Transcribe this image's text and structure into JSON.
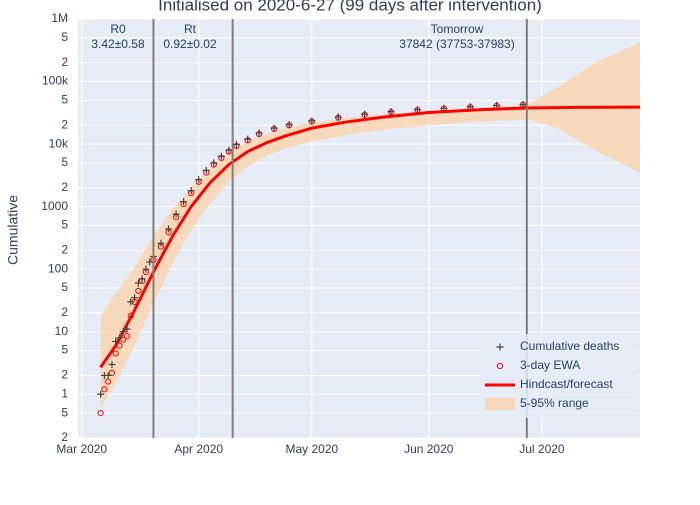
{
  "chart_data": {
    "type": "line",
    "title": "Initialised on 2020-6-27 (99 days after intervention)",
    "y_label": "Cumulative",
    "log_y": true,
    "grid": true,
    "legend": "bottom-right",
    "xlim": [
      "2020-02-29",
      "2020-07-27"
    ],
    "xticks": [
      {
        "value": "2020-03-01",
        "label": "Mar 2020"
      },
      {
        "value": "2020-04-01",
        "label": "Apr 2020"
      },
      {
        "value": "2020-05-01",
        "label": "May 2020"
      },
      {
        "value": "2020-06-01",
        "label": "Jun 2020"
      },
      {
        "value": "2020-07-01",
        "label": "Jul 2020"
      }
    ],
    "ylim": [
      0.2,
      1000000
    ],
    "yticks": [
      {
        "value": 0.2,
        "label": "2"
      },
      {
        "value": 0.5,
        "label": "5"
      },
      1,
      {
        "value": 2,
        "label": "2"
      },
      {
        "value": 5,
        "label": "5"
      },
      10,
      {
        "value": 20,
        "label": "2"
      },
      {
        "value": 50,
        "label": "5"
      },
      100,
      {
        "value": 200,
        "label": "2"
      },
      {
        "value": 500,
        "label": "5"
      },
      1000,
      {
        "value": 2000,
        "label": "2"
      },
      {
        "value": 5000,
        "label": "5"
      },
      {
        "value": 10000,
        "label": "10k"
      },
      {
        "value": 20000,
        "label": "2"
      },
      {
        "value": 50000,
        "label": "5"
      },
      {
        "value": 100000,
        "label": "100k"
      },
      {
        "value": 200000,
        "label": "2"
      },
      {
        "value": 500000,
        "label": "5"
      },
      {
        "value": 1000000,
        "label": "1M"
      }
    ],
    "vlines": [
      {
        "x": "2020-03-20",
        "label": "R0",
        "text": "3.42±0.58"
      },
      {
        "x": "2020-04-10",
        "label": "Rt",
        "text": "0.92±0.02"
      },
      {
        "x": "2020-06-27",
        "label": "Tomorrow",
        "text": "37842 (37753-37983)"
      }
    ],
    "series": [
      {
        "name": "Cumulative deaths",
        "kind": "plus",
        "color": "#444444",
        "x": [
          "2020-03-06",
          "2020-03-07",
          "2020-03-08",
          "2020-03-09",
          "2020-03-10",
          "2020-03-11",
          "2020-03-12",
          "2020-03-13",
          "2020-03-14",
          "2020-03-15",
          "2020-03-16",
          "2020-03-17",
          "2020-03-18",
          "2020-03-19",
          "2020-03-20",
          "2020-03-22",
          "2020-03-24",
          "2020-03-26",
          "2020-03-28",
          "2020-03-30",
          "2020-04-01",
          "2020-04-03",
          "2020-04-05",
          "2020-04-07",
          "2020-04-09",
          "2020-04-11",
          "2020-04-14",
          "2020-04-17",
          "2020-04-21",
          "2020-04-25",
          "2020-05-01",
          "2020-05-08",
          "2020-05-15",
          "2020-05-22",
          "2020-05-29",
          "2020-06-05",
          "2020-06-12",
          "2020-06-19",
          "2020-06-26"
        ],
        "values": [
          1,
          2,
          2,
          3,
          7,
          8,
          10,
          11,
          30,
          35,
          60,
          70,
          100,
          130,
          160,
          260,
          440,
          760,
          1200,
          1800,
          2700,
          3800,
          5000,
          6400,
          8000,
          9900,
          12000,
          15000,
          18000,
          20500,
          23500,
          27000,
          30000,
          33000,
          35500,
          37500,
          39500,
          41500,
          43000
        ]
      },
      {
        "name": "3-day EWA",
        "kind": "circle",
        "color": "#ff0000",
        "x": [
          "2020-03-06",
          "2020-03-07",
          "2020-03-08",
          "2020-03-09",
          "2020-03-10",
          "2020-03-11",
          "2020-03-12",
          "2020-03-13",
          "2020-03-14",
          "2020-03-15",
          "2020-03-16",
          "2020-03-17",
          "2020-03-18",
          "2020-03-20",
          "2020-03-22",
          "2020-03-24",
          "2020-03-26",
          "2020-03-28",
          "2020-03-30",
          "2020-04-01",
          "2020-04-03",
          "2020-04-05",
          "2020-04-07",
          "2020-04-09",
          "2020-04-11",
          "2020-04-14",
          "2020-04-17",
          "2020-04-21",
          "2020-04-25",
          "2020-05-01",
          "2020-05-08",
          "2020-05-15",
          "2020-05-22",
          "2020-05-29",
          "2020-06-05",
          "2020-06-12",
          "2020-06-19",
          "2020-06-26"
        ],
        "values": [
          0.5,
          1.2,
          1.6,
          2.2,
          4.5,
          6,
          7.5,
          8.5,
          18,
          30,
          45,
          65,
          90,
          140,
          230,
          390,
          680,
          1100,
          1650,
          2500,
          3500,
          4700,
          6000,
          7600,
          9300,
          11500,
          14500,
          17500,
          20000,
          23000,
          26500,
          29500,
          32500,
          35000,
          37000,
          39000,
          41000,
          42500
        ]
      },
      {
        "name": "Hindcast/forecast",
        "kind": "line",
        "color": "#ff0000",
        "x": [
          "2020-03-06",
          "2020-03-10",
          "2020-03-15",
          "2020-03-20",
          "2020-03-25",
          "2020-03-30",
          "2020-04-04",
          "2020-04-09",
          "2020-04-14",
          "2020-04-19",
          "2020-04-24",
          "2020-05-01",
          "2020-05-10",
          "2020-05-20",
          "2020-06-01",
          "2020-06-15",
          "2020-06-27",
          "2020-07-10",
          "2020-07-27"
        ],
        "values": [
          2.7,
          6,
          22,
          90,
          330,
          1000,
          2400,
          4700,
          7600,
          10500,
          13500,
          18000,
          22500,
          27000,
          32000,
          35500,
          37800,
          38600,
          39000
        ]
      },
      {
        "name": "5-95% range",
        "kind": "band",
        "color": "#fbd3a6",
        "x": [
          "2020-03-06",
          "2020-03-10",
          "2020-03-15",
          "2020-03-20",
          "2020-03-25",
          "2020-03-30",
          "2020-04-04",
          "2020-04-09",
          "2020-04-14",
          "2020-04-19",
          "2020-04-24",
          "2020-05-01",
          "2020-05-10",
          "2020-05-20",
          "2020-06-01",
          "2020-06-15",
          "2020-06-27",
          "2020-07-05",
          "2020-07-15",
          "2020-07-27"
        ],
        "lower": [
          0.6,
          1.5,
          6,
          28,
          120,
          420,
          1100,
          2500,
          4400,
          6500,
          8500,
          11000,
          14000,
          17000,
          20000,
          23000,
          25000,
          18000,
          8000,
          3500
        ],
        "upper": [
          18,
          40,
          110,
          330,
          900,
          2000,
          4000,
          7500,
          11000,
          14500,
          18000,
          22000,
          26000,
          30000,
          34000,
          38000,
          42000,
          80000,
          200000,
          420000
        ]
      }
    ]
  }
}
